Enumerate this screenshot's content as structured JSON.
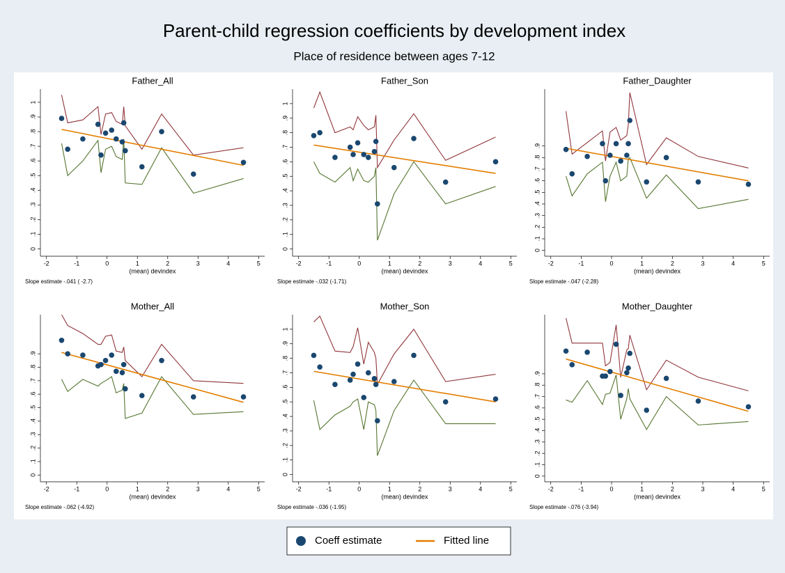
{
  "title": "Parent-child regression coefficients by development index",
  "subtitle": "Place of residence between ages 7-12",
  "chart_data": [
    {
      "type": "scatter",
      "title": "Father_All",
      "xlabel": "(mean) devindex",
      "note": "Slope estimate -.041 ( -2.7)",
      "x": [
        -1.5,
        -1.3,
        -0.8,
        -0.3,
        -0.2,
        -0.05,
        0.15,
        0.3,
        0.5,
        0.55,
        0.6,
        1.15,
        1.8,
        2.85,
        4.5
      ],
      "xlim": [
        -2.2,
        5.2
      ],
      "xticks": [
        -2,
        -1,
        0,
        1,
        2,
        3,
        4,
        5
      ],
      "ylim": [
        -0.05,
        1.09
      ],
      "yticks": [
        0,
        {
          "value": 0.1,
          "label": ".1"
        },
        {
          "value": 0.2,
          "label": ".2"
        },
        {
          "value": 0.3,
          "label": ".3"
        },
        {
          "value": 0.4,
          "label": ".4"
        },
        {
          "value": 0.5,
          "label": ".5"
        },
        {
          "value": 0.6,
          "label": ".6"
        },
        {
          "value": 0.7,
          "label": ".7"
        },
        {
          "value": 0.8,
          "label": ".8"
        },
        {
          "value": 0.9,
          "label": ".9"
        },
        1
      ],
      "series": [
        {
          "name": "Coeff estimate",
          "color": "#1a476f",
          "mode": "markers",
          "values": [
            0.89,
            0.68,
            0.75,
            0.85,
            0.64,
            0.79,
            0.81,
            0.75,
            0.73,
            0.86,
            0.67,
            0.56,
            0.8,
            0.51,
            0.59
          ]
        },
        {
          "color": "#90353b",
          "mode": "lines",
          "values": [
            1.05,
            0.86,
            0.88,
            0.97,
            0.78,
            0.92,
            0.93,
            0.87,
            0.85,
            0.97,
            0.84,
            0.68,
            0.92,
            0.64,
            0.69
          ]
        },
        {
          "color": "#55752f",
          "mode": "lines",
          "values": [
            0.72,
            0.5,
            0.6,
            0.74,
            0.52,
            0.68,
            0.7,
            0.63,
            0.61,
            0.75,
            0.45,
            0.44,
            0.69,
            0.38,
            0.48
          ]
        },
        {
          "name": "Fitted line",
          "color": "#e37e00",
          "mode": "lines",
          "x": [
            -1.5,
            4.5
          ],
          "values": [
            0.815,
            0.57
          ]
        }
      ]
    },
    {
      "type": "scatter",
      "title": "Father_Son",
      "xlabel": "(mean) devindex",
      "note": "Slope estimate -.032 (-1.71)",
      "x": [
        -1.5,
        -1.3,
        -0.8,
        -0.3,
        -0.2,
        -0.05,
        0.15,
        0.3,
        0.5,
        0.55,
        0.6,
        1.15,
        1.8,
        2.85,
        4.5
      ],
      "xlim": [
        -2.2,
        5.2
      ],
      "xticks": [
        -2,
        -1,
        0,
        1,
        2,
        3,
        4,
        5
      ],
      "ylim": [
        -0.05,
        1.1
      ],
      "yticks": [
        0,
        {
          "value": 0.1,
          "label": ".1"
        },
        {
          "value": 0.2,
          "label": ".2"
        },
        {
          "value": 0.3,
          "label": ".3"
        },
        {
          "value": 0.4,
          "label": ".4"
        },
        {
          "value": 0.5,
          "label": ".5"
        },
        {
          "value": 0.6,
          "label": ".6"
        },
        {
          "value": 0.7,
          "label": ".7"
        },
        {
          "value": 0.8,
          "label": ".8"
        },
        {
          "value": 0.9,
          "label": ".9"
        },
        1
      ],
      "series": [
        {
          "name": "Coeff estimate",
          "color": "#1a476f",
          "mode": "markers",
          "values": [
            0.78,
            0.8,
            0.63,
            0.7,
            0.65,
            0.73,
            0.65,
            0.63,
            0.67,
            0.74,
            0.31,
            0.56,
            0.76,
            0.46,
            0.6
          ]
        },
        {
          "color": "#90353b",
          "mode": "lines",
          "values": [
            0.97,
            1.08,
            0.8,
            0.84,
            0.82,
            0.91,
            0.85,
            0.82,
            0.84,
            0.92,
            0.56,
            0.75,
            0.93,
            0.61,
            0.77
          ]
        },
        {
          "color": "#55752f",
          "mode": "lines",
          "values": [
            0.6,
            0.52,
            0.46,
            0.56,
            0.47,
            0.55,
            0.47,
            0.46,
            0.5,
            0.56,
            0.06,
            0.38,
            0.6,
            0.31,
            0.43
          ]
        },
        {
          "name": "Fitted line",
          "color": "#e37e00",
          "mode": "lines",
          "x": [
            -1.5,
            4.5
          ],
          "values": [
            0.715,
            0.52
          ]
        }
      ]
    },
    {
      "type": "scatter",
      "title": "Father_Daughter",
      "xlabel": "(mean) devindex",
      "note": "Slope estimate -.047 (-2.28)",
      "x": [
        -1.5,
        -1.3,
        -0.8,
        -0.3,
        -0.2,
        -0.05,
        0.15,
        0.3,
        0.5,
        0.55,
        0.6,
        1.15,
        1.8,
        2.85,
        4.5
      ],
      "xlim": [
        -2.2,
        5.2
      ],
      "xticks": [
        -2,
        -1,
        0,
        1,
        2,
        3,
        4,
        5
      ],
      "ylim": [
        -0.05,
        1.39
      ],
      "yticks": [
        0,
        {
          "value": 0.1,
          "label": ".1"
        },
        {
          "value": 0.2,
          "label": ".2"
        },
        {
          "value": 0.3,
          "label": ".3"
        },
        {
          "value": 0.4,
          "label": ".4"
        },
        {
          "value": 0.5,
          "label": ".5"
        },
        {
          "value": 0.6,
          "label": ".6"
        },
        {
          "value": 0.7,
          "label": ".7"
        },
        {
          "value": 0.8,
          "label": ".8"
        },
        {
          "value": 0.9,
          "label": ".9"
        }
      ],
      "series": [
        {
          "name": "Coeff estimate",
          "color": "#1a476f",
          "mode": "markers",
          "values": [
            0.87,
            0.66,
            0.81,
            0.92,
            0.6,
            0.82,
            0.92,
            0.77,
            0.82,
            0.92,
            1.12,
            0.59,
            0.8,
            0.59,
            0.57
          ]
        },
        {
          "color": "#90353b",
          "mode": "lines",
          "values": [
            1.2,
            0.83,
            0.93,
            1.03,
            0.77,
            1.02,
            1.06,
            0.95,
            0.99,
            1.08,
            1.36,
            0.74,
            0.97,
            0.81,
            0.71
          ]
        },
        {
          "color": "#55752f",
          "mode": "lines",
          "values": [
            0.64,
            0.47,
            0.66,
            0.76,
            0.42,
            0.64,
            0.76,
            0.6,
            0.64,
            0.79,
            0.8,
            0.45,
            0.65,
            0.36,
            0.44
          ]
        },
        {
          "name": "Fitted line",
          "color": "#e37e00",
          "mode": "lines",
          "x": [
            -1.5,
            4.5
          ],
          "values": [
            0.88,
            0.6
          ]
        }
      ]
    },
    {
      "type": "scatter",
      "title": "Mother_All",
      "xlabel": "(mean) devindex",
      "note": "Slope estimate -.062 (-4.92)",
      "x": [
        -1.5,
        -1.3,
        -0.8,
        -0.3,
        -0.2,
        -0.05,
        0.15,
        0.3,
        0.5,
        0.55,
        0.6,
        1.15,
        1.8,
        2.85,
        4.5
      ],
      "xlim": [
        -2.2,
        5.2
      ],
      "xticks": [
        -2,
        -1,
        0,
        1,
        2,
        3,
        4,
        5
      ],
      "ylim": [
        -0.05,
        1.19
      ],
      "yticks": [
        0,
        {
          "value": 0.1,
          "label": ".1"
        },
        {
          "value": 0.2,
          "label": ".2"
        },
        {
          "value": 0.3,
          "label": ".3"
        },
        {
          "value": 0.4,
          "label": ".4"
        },
        {
          "value": 0.5,
          "label": ".5"
        },
        {
          "value": 0.6,
          "label": ".6"
        },
        {
          "value": 0.7,
          "label": ".7"
        },
        {
          "value": 0.8,
          "label": ".8"
        },
        {
          "value": 0.9,
          "label": ".9"
        }
      ],
      "series": [
        {
          "name": "Coeff estimate",
          "color": "#1a476f",
          "mode": "markers",
          "values": [
            1.0,
            0.9,
            0.89,
            0.81,
            0.82,
            0.85,
            0.89,
            0.77,
            0.76,
            0.82,
            0.64,
            0.59,
            0.85,
            0.58,
            0.58
          ]
        },
        {
          "color": "#90353b",
          "mode": "lines",
          "values": [
            1.19,
            1.11,
            1.05,
            0.97,
            0.97,
            1.03,
            1.04,
            0.92,
            0.91,
            0.95,
            0.85,
            0.73,
            0.97,
            0.7,
            0.68
          ]
        },
        {
          "color": "#55752f",
          "mode": "lines",
          "values": [
            0.71,
            0.62,
            0.71,
            0.66,
            0.68,
            0.7,
            0.73,
            0.61,
            0.63,
            0.68,
            0.42,
            0.46,
            0.73,
            0.45,
            0.47
          ]
        },
        {
          "name": "Fitted line",
          "color": "#e37e00",
          "mode": "lines",
          "x": [
            -1.5,
            4.5
          ],
          "values": [
            0.91,
            0.54
          ]
        }
      ]
    },
    {
      "type": "scatter",
      "title": "Mother_Son",
      "xlabel": "(mean) devindex",
      "note": "Slope estimate -.036 (-1.95)",
      "x": [
        -1.5,
        -1.3,
        -0.8,
        -0.3,
        -0.2,
        -0.05,
        0.15,
        0.3,
        0.5,
        0.55,
        0.6,
        1.15,
        1.8,
        2.85,
        4.5
      ],
      "xlim": [
        -2.2,
        5.2
      ],
      "xticks": [
        -2,
        -1,
        0,
        1,
        2,
        3,
        4,
        5
      ],
      "ylim": [
        -0.05,
        1.1
      ],
      "yticks": [
        0,
        {
          "value": 0.1,
          "label": ".1"
        },
        {
          "value": 0.2,
          "label": ".2"
        },
        {
          "value": 0.3,
          "label": ".3"
        },
        {
          "value": 0.4,
          "label": ".4"
        },
        {
          "value": 0.5,
          "label": ".5"
        },
        {
          "value": 0.6,
          "label": ".6"
        },
        {
          "value": 0.7,
          "label": ".7"
        },
        {
          "value": 0.8,
          "label": ".8"
        },
        {
          "value": 0.9,
          "label": ".9"
        },
        1
      ],
      "series": [
        {
          "name": "Coeff estimate",
          "color": "#1a476f",
          "mode": "markers",
          "values": [
            0.82,
            0.74,
            0.62,
            0.65,
            0.69,
            0.76,
            0.53,
            0.7,
            0.66,
            0.62,
            0.37,
            0.64,
            0.82,
            0.5,
            0.52
          ]
        },
        {
          "color": "#90353b",
          "mode": "lines",
          "values": [
            1.05,
            1.09,
            0.85,
            0.84,
            0.88,
            1.01,
            0.76,
            0.91,
            0.84,
            0.8,
            0.62,
            0.83,
            1.0,
            0.64,
            0.69
          ]
        },
        {
          "color": "#55752f",
          "mode": "lines",
          "values": [
            0.51,
            0.31,
            0.41,
            0.47,
            0.5,
            0.52,
            0.31,
            0.5,
            0.48,
            0.44,
            0.13,
            0.44,
            0.65,
            0.35,
            0.35
          ]
        },
        {
          "name": "Fitted line",
          "color": "#e37e00",
          "mode": "lines",
          "x": [
            -1.5,
            4.5
          ],
          "values": [
            0.71,
            0.5
          ]
        }
      ]
    },
    {
      "type": "scatter",
      "title": "Mother_Daughter",
      "xlabel": "(mean) devindex",
      "note": "Slope estimate -.076 (-3.94)",
      "x": [
        -1.5,
        -1.3,
        -0.8,
        -0.3,
        -0.2,
        -0.05,
        0.15,
        0.3,
        0.5,
        0.55,
        0.6,
        1.15,
        1.8,
        2.85,
        4.5
      ],
      "xlim": [
        -2.2,
        5.2
      ],
      "xticks": [
        -2,
        -1,
        0,
        1,
        2,
        3,
        4,
        5
      ],
      "ylim": [
        -0.05,
        1.42
      ],
      "yticks": [
        0,
        {
          "value": 0.1,
          "label": ".1"
        },
        {
          "value": 0.2,
          "label": ".2"
        },
        {
          "value": 0.3,
          "label": ".3"
        },
        {
          "value": 0.4,
          "label": ".4"
        },
        {
          "value": 0.5,
          "label": ".5"
        },
        {
          "value": 0.6,
          "label": ".6"
        },
        {
          "value": 0.7,
          "label": ".7"
        },
        {
          "value": 0.8,
          "label": ".8"
        },
        {
          "value": 0.9,
          "label": ".9"
        }
      ],
      "series": [
        {
          "name": "Coeff estimate",
          "color": "#1a476f",
          "mode": "markers",
          "values": [
            1.1,
            0.98,
            1.09,
            0.88,
            0.88,
            0.92,
            1.16,
            0.71,
            0.91,
            0.95,
            1.08,
            0.58,
            0.86,
            0.66,
            0.61
          ]
        },
        {
          "color": "#90353b",
          "mode": "lines",
          "values": [
            1.39,
            1.17,
            1.17,
            1.17,
            0.97,
            1.0,
            1.33,
            0.87,
            1.11,
            1.12,
            1.24,
            0.76,
            1.02,
            0.87,
            0.75
          ]
        },
        {
          "color": "#55752f",
          "mode": "lines",
          "values": [
            0.67,
            0.65,
            0.84,
            0.63,
            0.72,
            0.73,
            0.89,
            0.5,
            0.68,
            0.77,
            0.68,
            0.41,
            0.7,
            0.45,
            0.48
          ]
        },
        {
          "name": "Fitted line",
          "color": "#e37e00",
          "mode": "lines",
          "x": [
            -1.5,
            4.5
          ],
          "values": [
            1.03,
            0.57
          ]
        }
      ]
    }
  ]
}
